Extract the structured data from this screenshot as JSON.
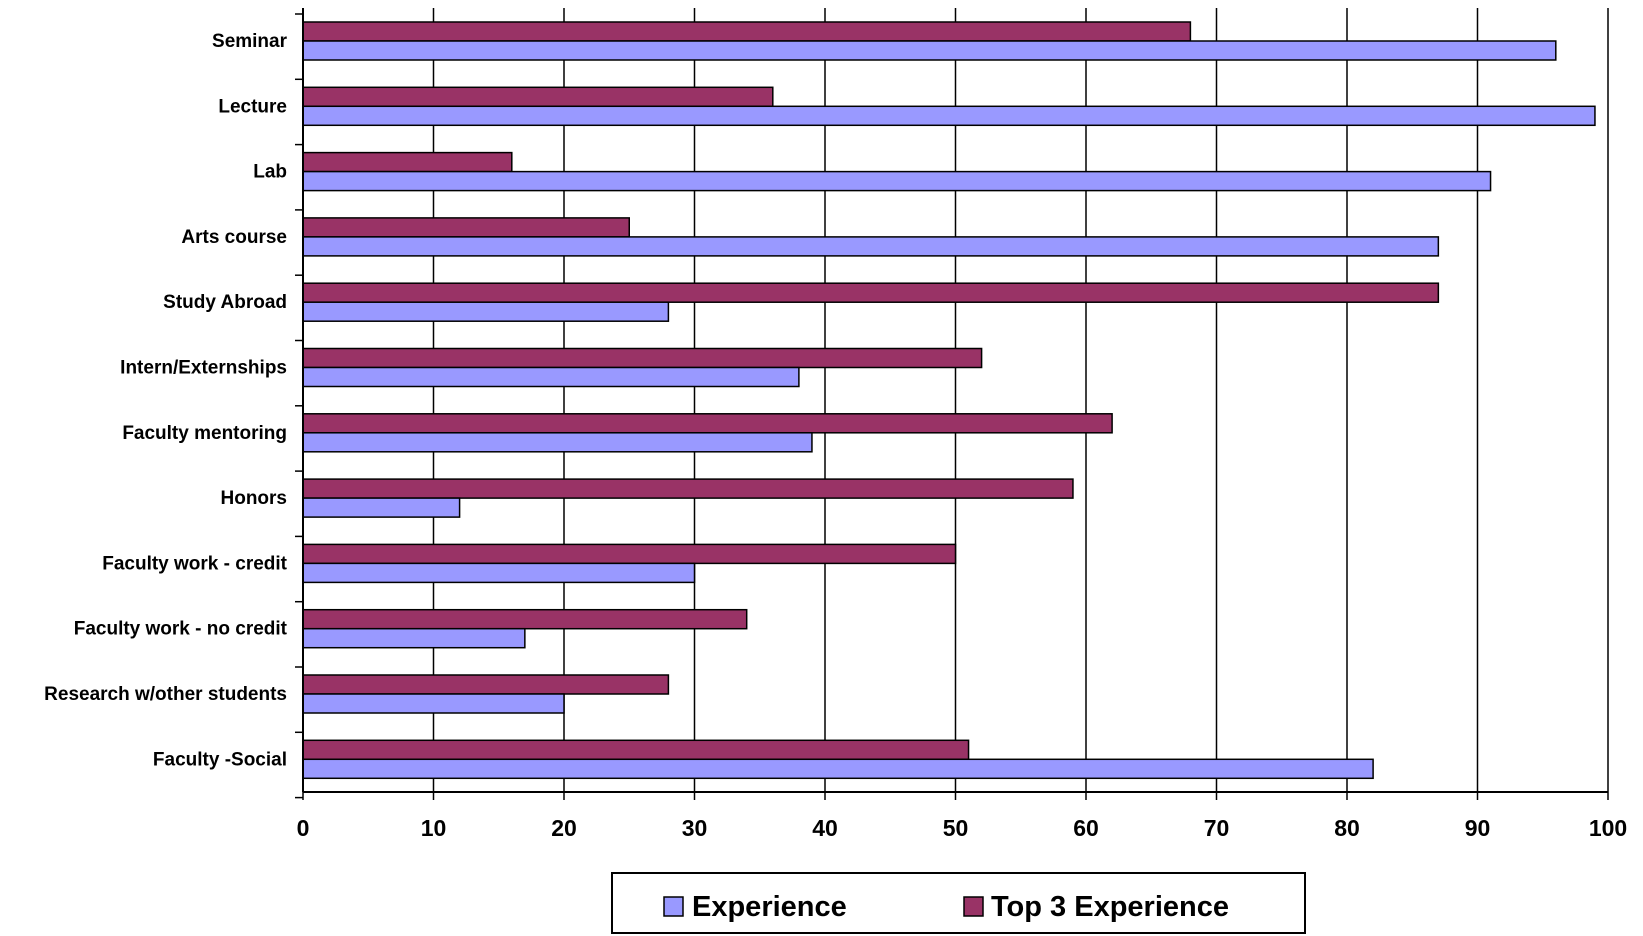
{
  "chart_data": {
    "type": "bar",
    "orientation": "horizontal",
    "categories": [
      "Seminar",
      "Lecture",
      "Lab",
      "Arts course",
      "Study Abroad",
      "Intern/Externships",
      "Faculty mentoring",
      "Honors",
      "Faculty work - credit",
      "Faculty work - no credit",
      "Research w/other students",
      "Faculty -Social"
    ],
    "series": [
      {
        "name": "Experience",
        "color": "#9999ff",
        "values": [
          96,
          99,
          91,
          87,
          28,
          38,
          39,
          12,
          30,
          17,
          20,
          82
        ]
      },
      {
        "name": "Top 3 Experience",
        "color": "#993366",
        "values": [
          68,
          36,
          16,
          25,
          87,
          52,
          62,
          59,
          50,
          34,
          28,
          51
        ]
      }
    ],
    "xlim": [
      0,
      100
    ],
    "x_ticks": [
      "0",
      "10",
      "20",
      "30",
      "40",
      "50",
      "60",
      "70",
      "80",
      "90",
      "100"
    ],
    "grid": "vertical",
    "legend_position": "bottom"
  }
}
